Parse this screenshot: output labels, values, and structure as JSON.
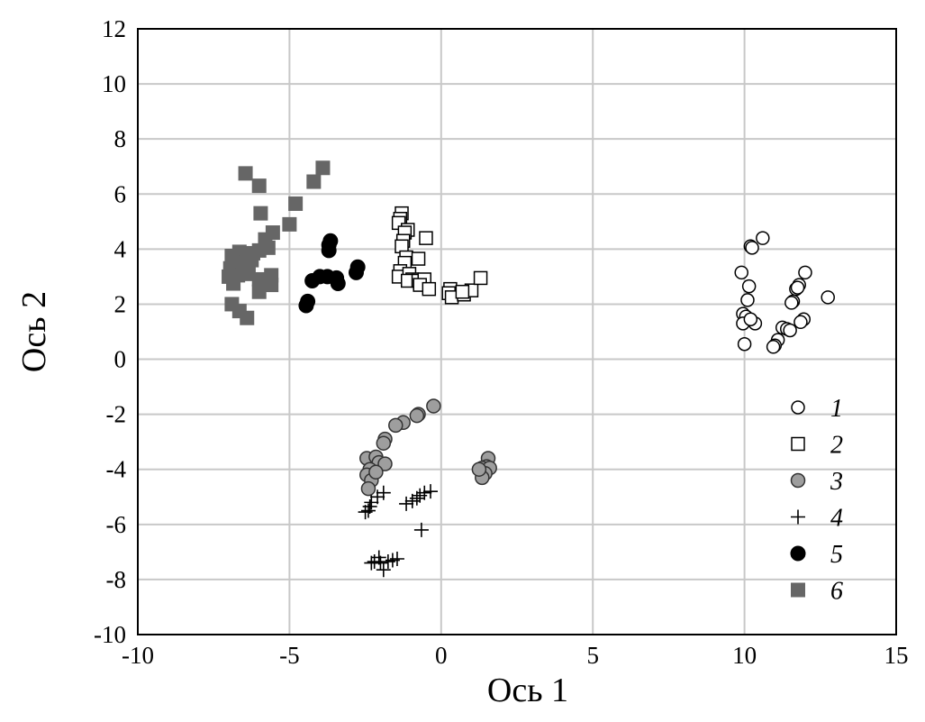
{
  "chart_data": {
    "type": "scatter",
    "title": "",
    "xlabel": "Ось 1",
    "ylabel": "Ось 2",
    "xlim": [
      -10,
      15
    ],
    "ylim": [
      -10,
      12
    ],
    "x_ticks": [
      -10,
      -5,
      0,
      5,
      10,
      15
    ],
    "y_ticks": [
      12,
      10,
      8,
      6,
      4,
      2,
      0,
      -2,
      -4,
      -6,
      -8,
      -10
    ],
    "grid": true,
    "legend_position": "right-bottom inside",
    "series": [
      {
        "name": "1",
        "marker": "open-circle",
        "color": "#000000",
        "points": [
          [
            10.6,
            4.4
          ],
          [
            10.2,
            4.1
          ],
          [
            10.25,
            4.05
          ],
          [
            9.9,
            3.15
          ],
          [
            10.15,
            2.65
          ],
          [
            10.1,
            2.15
          ],
          [
            9.95,
            1.65
          ],
          [
            10.05,
            1.55
          ],
          [
            9.95,
            1.3
          ],
          [
            10.35,
            1.3
          ],
          [
            10.2,
            1.45
          ],
          [
            10.0,
            0.55
          ],
          [
            12.0,
            3.15
          ],
          [
            11.8,
            2.7
          ],
          [
            11.7,
            2.55
          ],
          [
            11.75,
            2.6
          ],
          [
            11.6,
            2.1
          ],
          [
            11.55,
            2.05
          ],
          [
            12.75,
            2.25
          ],
          [
            11.95,
            1.45
          ],
          [
            11.85,
            1.35
          ],
          [
            11.25,
            1.15
          ],
          [
            11.4,
            1.1
          ],
          [
            11.5,
            1.05
          ],
          [
            11.1,
            0.7
          ],
          [
            11.0,
            0.5
          ],
          [
            10.95,
            0.45
          ]
        ]
      },
      {
        "name": "2",
        "marker": "open-square",
        "color": "#000000",
        "points": [
          [
            -1.3,
            5.3
          ],
          [
            -1.35,
            5.1
          ],
          [
            -1.4,
            4.95
          ],
          [
            -1.1,
            4.7
          ],
          [
            -1.2,
            4.6
          ],
          [
            -1.25,
            4.3
          ],
          [
            -1.3,
            4.1
          ],
          [
            -0.5,
            4.4
          ],
          [
            -1.15,
            3.7
          ],
          [
            -1.2,
            3.5
          ],
          [
            -0.75,
            3.65
          ],
          [
            -1.35,
            3.2
          ],
          [
            -1.4,
            3.0
          ],
          [
            -1.05,
            3.1
          ],
          [
            -0.95,
            2.9
          ],
          [
            -1.1,
            2.85
          ],
          [
            -0.75,
            2.85
          ],
          [
            -0.55,
            2.9
          ],
          [
            -0.7,
            2.7
          ],
          [
            -0.4,
            2.55
          ],
          [
            0.3,
            2.55
          ],
          [
            0.25,
            2.4
          ],
          [
            0.35,
            2.25
          ],
          [
            0.75,
            2.35
          ],
          [
            1.0,
            2.5
          ],
          [
            1.3,
            2.95
          ],
          [
            0.7,
            2.45
          ]
        ]
      },
      {
        "name": "3",
        "marker": "grey-circle",
        "color": "#9e9e9e",
        "points": [
          [
            -0.25,
            -1.7
          ],
          [
            -0.75,
            -2.0
          ],
          [
            -0.8,
            -2.05
          ],
          [
            -1.25,
            -2.3
          ],
          [
            -1.5,
            -2.4
          ],
          [
            -1.85,
            -2.9
          ],
          [
            -1.9,
            -3.05
          ],
          [
            -2.45,
            -3.6
          ],
          [
            -2.15,
            -3.55
          ],
          [
            -2.05,
            -3.75
          ],
          [
            -1.85,
            -3.8
          ],
          [
            -2.35,
            -4.0
          ],
          [
            -2.45,
            -4.2
          ],
          [
            -2.3,
            -4.4
          ],
          [
            -2.4,
            -4.7
          ],
          [
            -2.15,
            -4.1
          ],
          [
            1.55,
            -3.6
          ],
          [
            1.5,
            -3.9
          ],
          [
            1.35,
            -3.95
          ],
          [
            1.6,
            -3.95
          ],
          [
            1.45,
            -4.15
          ],
          [
            1.35,
            -4.3
          ],
          [
            1.25,
            -4.0
          ]
        ]
      },
      {
        "name": "4",
        "marker": "plus",
        "color": "#000000",
        "points": [
          [
            -1.9,
            -4.85
          ],
          [
            -2.1,
            -5.0
          ],
          [
            -2.3,
            -5.2
          ],
          [
            -2.35,
            -5.35
          ],
          [
            -2.4,
            -5.5
          ],
          [
            -2.5,
            -5.55
          ],
          [
            -0.35,
            -4.8
          ],
          [
            -0.55,
            -4.85
          ],
          [
            -0.7,
            -4.95
          ],
          [
            -0.8,
            -5.05
          ],
          [
            -0.95,
            -5.15
          ],
          [
            -1.15,
            -5.25
          ],
          [
            -0.65,
            -6.2
          ],
          [
            -1.45,
            -7.25
          ],
          [
            -1.6,
            -7.3
          ],
          [
            -1.75,
            -7.35
          ],
          [
            -2.0,
            -7.4
          ],
          [
            -2.2,
            -7.35
          ],
          [
            -2.3,
            -7.4
          ],
          [
            -1.9,
            -7.65
          ],
          [
            -2.05,
            -7.2
          ]
        ]
      },
      {
        "name": "5",
        "marker": "black-circle",
        "color": "#000000",
        "points": [
          [
            -3.65,
            4.3
          ],
          [
            -3.7,
            4.15
          ],
          [
            -3.7,
            3.95
          ],
          [
            -2.75,
            3.35
          ],
          [
            -2.8,
            3.15
          ],
          [
            -3.75,
            3.0
          ],
          [
            -4.0,
            3.0
          ],
          [
            -4.25,
            2.85
          ],
          [
            -3.45,
            2.95
          ],
          [
            -3.4,
            2.75
          ],
          [
            -4.4,
            2.1
          ],
          [
            -4.45,
            1.95
          ]
        ]
      },
      {
        "name": "6",
        "marker": "dark-grey-square",
        "color": "#666666",
        "points": [
          [
            -3.9,
            6.95
          ],
          [
            -4.2,
            6.45
          ],
          [
            -4.8,
            5.65
          ],
          [
            -6.45,
            6.75
          ],
          [
            -6.0,
            6.3
          ],
          [
            -5.95,
            5.3
          ],
          [
            -5.0,
            4.9
          ],
          [
            -5.55,
            4.6
          ],
          [
            -5.8,
            4.35
          ],
          [
            -5.7,
            4.05
          ],
          [
            -6.0,
            3.95
          ],
          [
            -6.2,
            3.85
          ],
          [
            -6.5,
            3.8
          ],
          [
            -6.65,
            3.9
          ],
          [
            -6.9,
            3.75
          ],
          [
            -6.25,
            3.6
          ],
          [
            -6.7,
            3.5
          ],
          [
            -6.95,
            3.3
          ],
          [
            -6.55,
            3.2
          ],
          [
            -6.35,
            3.1
          ],
          [
            -6.7,
            3.05
          ],
          [
            -7.0,
            3.0
          ],
          [
            -6.85,
            2.75
          ],
          [
            -6.0,
            2.9
          ],
          [
            -5.6,
            2.7
          ],
          [
            -6.0,
            2.45
          ],
          [
            -6.9,
            2.0
          ],
          [
            -6.65,
            1.75
          ],
          [
            -6.4,
            1.5
          ],
          [
            -5.6,
            3.05
          ]
        ]
      }
    ]
  }
}
